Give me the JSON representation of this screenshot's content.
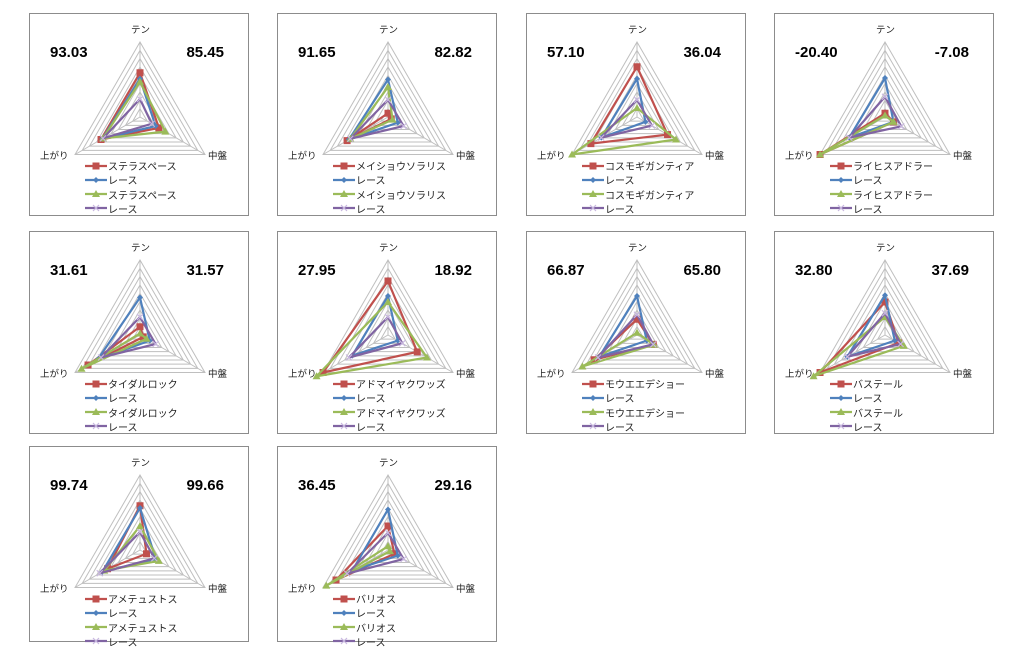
{
  "colors": {
    "series1": "#c0504d",
    "series2": "#4f81bd",
    "series3": "#9bbb59",
    "series4": "#8064a2",
    "grid": "#bfbfbf",
    "border": "#8c8c8c"
  },
  "chart_data": [
    {
      "type": "radar",
      "axes": [
        "テン",
        "中盤",
        "上がり"
      ],
      "rlim": [
        0,
        1
      ],
      "grid": true,
      "legend": "bottom",
      "left_value": "93.03",
      "right_value": "85.45",
      "series": [
        {
          "name": "ステラスペース",
          "marker": "square",
          "values": [
            0.59,
            0.29,
            0.6
          ]
        },
        {
          "name": "レース",
          "marker": "diamond",
          "values": [
            0.51,
            0.24,
            0.58
          ]
        },
        {
          "name": "ステラスペース",
          "marker": "triangle",
          "values": [
            0.47,
            0.39,
            0.57
          ]
        },
        {
          "name": "レース",
          "marker": "x",
          "values": [
            0.24,
            0.18,
            0.57
          ]
        }
      ]
    },
    {
      "type": "radar",
      "axes": [
        "テン",
        "中盤",
        "上がり"
      ],
      "rlim": [
        0,
        1
      ],
      "grid": true,
      "legend": "bottom",
      "left_value": "91.65",
      "right_value": "82.82",
      "series": [
        {
          "name": "メイショウソラリス",
          "marker": "square",
          "values": [
            0.05,
            0.05,
            0.63
          ]
        },
        {
          "name": "レース",
          "marker": "diamond",
          "values": [
            0.5,
            0.15,
            0.6
          ]
        },
        {
          "name": "メイショウソラリス",
          "marker": "triangle",
          "values": [
            0.4,
            0.07,
            0.58
          ]
        },
        {
          "name": "レース",
          "marker": "x",
          "values": [
            0.23,
            0.24,
            0.58
          ]
        }
      ]
    },
    {
      "type": "radar",
      "axes": [
        "テン",
        "中盤",
        "上がり"
      ],
      "rlim": [
        0,
        1
      ],
      "grid": true,
      "legend": "bottom",
      "left_value": "57.10",
      "right_value": "36.04",
      "series": [
        {
          "name": "コスモギガンティア",
          "marker": "square",
          "values": [
            0.67,
            0.47,
            0.71
          ]
        },
        {
          "name": "レース",
          "marker": "diamond",
          "values": [
            0.51,
            0.13,
            0.55
          ]
        },
        {
          "name": "コスモギガンティア",
          "marker": "triangle",
          "values": [
            0.12,
            0.6,
            1.0
          ]
        },
        {
          "name": "レース",
          "marker": "x",
          "values": [
            0.23,
            0.23,
            0.55
          ]
        }
      ]
    },
    {
      "type": "radar",
      "axes": [
        "テン",
        "中盤",
        "上がり"
      ],
      "rlim": [
        0,
        1
      ],
      "grid": true,
      "legend": "bottom",
      "left_value": "-20.40",
      "right_value": "-7.08",
      "series": [
        {
          "name": "ライヒスアドラー",
          "marker": "square",
          "values": [
            0.05,
            0.13,
            1.0
          ]
        },
        {
          "name": "レース",
          "marker": "diamond",
          "values": [
            0.52,
            0.13,
            0.55
          ]
        },
        {
          "name": "ライヒスアドラー",
          "marker": "triangle",
          "values": [
            0.02,
            0.13,
            1.0
          ]
        },
        {
          "name": "レース",
          "marker": "x",
          "values": [
            0.27,
            0.25,
            0.55
          ]
        }
      ]
    },
    {
      "type": "radar",
      "axes": [
        "テン",
        "中盤",
        "上がり"
      ],
      "rlim": [
        0,
        1
      ],
      "grid": true,
      "legend": "bottom",
      "left_value": "31.61",
      "right_value": "31.57",
      "series": [
        {
          "name": "タイダルロック",
          "marker": "square",
          "values": [
            0.11,
            0.05,
            0.8
          ]
        },
        {
          "name": "レース",
          "marker": "diamond",
          "values": [
            0.5,
            0.15,
            0.65
          ]
        },
        {
          "name": "タイダルロック",
          "marker": "triangle",
          "values": [
            0.02,
            0.1,
            0.9
          ]
        },
        {
          "name": "レース",
          "marker": "x",
          "values": [
            0.24,
            0.24,
            0.6
          ]
        }
      ]
    },
    {
      "type": "radar",
      "axes": [
        "テン",
        "中盤",
        "上がり"
      ],
      "rlim": [
        0,
        1
      ],
      "grid": true,
      "legend": "bottom",
      "left_value": "27.95",
      "right_value": "18.92",
      "series": [
        {
          "name": "アドマイヤクワッズ",
          "marker": "square",
          "values": [
            0.72,
            0.45,
            1.0
          ]
        },
        {
          "name": "レース",
          "marker": "diamond",
          "values": [
            0.52,
            0.15,
            0.55
          ]
        },
        {
          "name": "アドマイヤクワッズ",
          "marker": "triangle",
          "values": [
            0.44,
            0.6,
            1.1
          ]
        },
        {
          "name": "レース",
          "marker": "x",
          "values": [
            0.24,
            0.22,
            0.6
          ]
        }
      ]
    },
    {
      "type": "radar",
      "axes": [
        "テン",
        "中盤",
        "上がり"
      ],
      "rlim": [
        0,
        1
      ],
      "grid": true,
      "legend": "bottom",
      "left_value": "66.87",
      "right_value": "65.80",
      "series": [
        {
          "name": "モウエエデショー",
          "marker": "square",
          "values": [
            0.21,
            0.25,
            0.66
          ]
        },
        {
          "name": "レース",
          "marker": "diamond",
          "values": [
            0.52,
            0.15,
            0.58
          ]
        },
        {
          "name": "モウエエデショー",
          "marker": "triangle",
          "values": [
            0.03,
            0.26,
            0.84
          ]
        },
        {
          "name": "レース",
          "marker": "x",
          "values": [
            0.27,
            0.25,
            0.6
          ]
        }
      ]
    },
    {
      "type": "radar",
      "axes": [
        "テン",
        "中盤",
        "上がり"
      ],
      "rlim": [
        0,
        1
      ],
      "grid": true,
      "legend": "bottom",
      "left_value": "32.80",
      "right_value": "37.69",
      "series": [
        {
          "name": "バステール",
          "marker": "square",
          "values": [
            0.44,
            0.21,
            1.0
          ]
        },
        {
          "name": "レース",
          "marker": "diamond",
          "values": [
            0.53,
            0.15,
            0.58
          ]
        },
        {
          "name": "バステール",
          "marker": "triangle",
          "values": [
            0.24,
            0.29,
            1.1
          ]
        },
        {
          "name": "レース",
          "marker": "x",
          "values": [
            0.29,
            0.24,
            0.58
          ]
        }
      ]
    },
    {
      "type": "radar",
      "axes": [
        "テン",
        "中盤",
        "上がり"
      ],
      "rlim": [
        0,
        1
      ],
      "grid": true,
      "legend": "bottom",
      "left_value": "99.74",
      "right_value": "99.66",
      "series": [
        {
          "name": "アメテュストス",
          "marker": "square",
          "values": [
            0.59,
            0.1,
            0.5
          ]
        },
        {
          "name": "レース",
          "marker": "diamond",
          "values": [
            0.56,
            0.24,
            0.58
          ]
        },
        {
          "name": "アメテュストス",
          "marker": "triangle",
          "values": [
            0.32,
            0.29,
            0.55
          ]
        },
        {
          "name": "レース",
          "marker": "x",
          "values": [
            0.24,
            0.22,
            0.62
          ]
        }
      ]
    },
    {
      "type": "radar",
      "axes": [
        "テン",
        "中盤",
        "上がり"
      ],
      "rlim": [
        0,
        1
      ],
      "grid": true,
      "legend": "bottom",
      "left_value": "36.45",
      "right_value": "29.16",
      "series": [
        {
          "name": "バリオス",
          "marker": "square",
          "values": [
            0.32,
            0.1,
            0.8
          ]
        },
        {
          "name": "レース",
          "marker": "diamond",
          "values": [
            0.54,
            0.15,
            0.55
          ]
        },
        {
          "name": "バリオス",
          "marker": "triangle",
          "values": [
            0.05,
            0.03,
            0.95
          ]
        },
        {
          "name": "レース",
          "marker": "x",
          "values": [
            0.23,
            0.24,
            0.63
          ]
        }
      ]
    }
  ]
}
